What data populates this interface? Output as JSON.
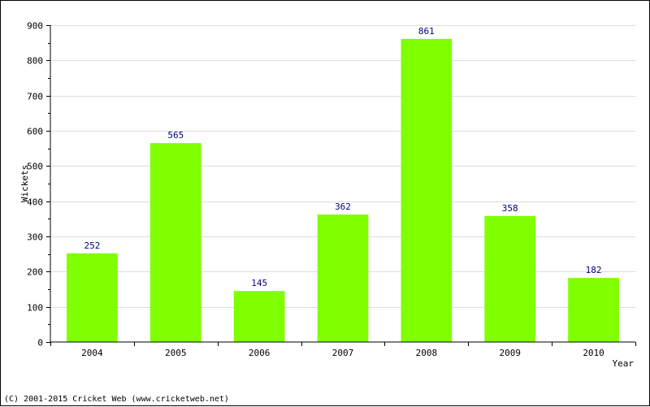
{
  "chart_data": {
    "type": "bar",
    "title": "",
    "xlabel": "Year",
    "ylabel": "Wickets",
    "categories": [
      "2004",
      "2005",
      "2006",
      "2007",
      "2008",
      "2009",
      "2010"
    ],
    "values": [
      252,
      565,
      145,
      362,
      861,
      358,
      182
    ],
    "ylim": [
      0,
      900
    ],
    "yticks": [
      0,
      100,
      200,
      300,
      400,
      500,
      600,
      700,
      800,
      900
    ],
    "grid": true,
    "bar_color": "#80ff00",
    "value_label_color": "#000080"
  },
  "footer": {
    "copyright": "(C) 2001-2015 Cricket Web (www.cricketweb.net)"
  }
}
